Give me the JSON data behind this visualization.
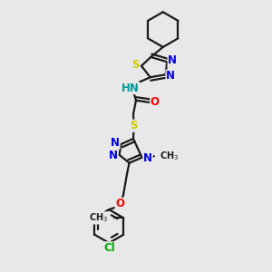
{
  "bg_color": "#e8e8e8",
  "bond_color": "#1a1a1a",
  "bond_width": 1.6,
  "dbo": 0.012,
  "atom_colors": {
    "N": "#0000dd",
    "S": "#cccc00",
    "O": "#ff0000",
    "Cl": "#00aa00",
    "H": "#009999",
    "C": "#1a1a1a"
  },
  "fs": 8.5,
  "fs_s": 7.0
}
